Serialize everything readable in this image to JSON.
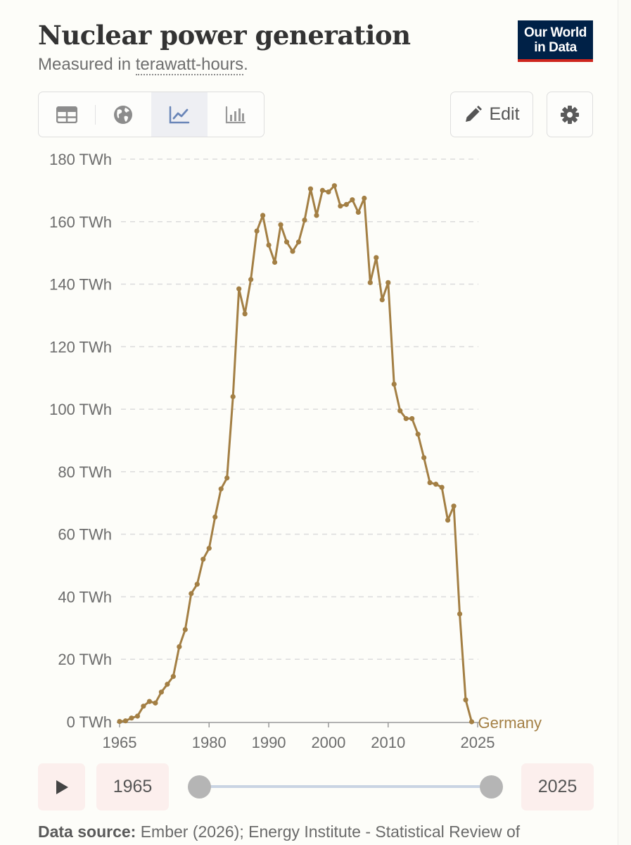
{
  "header": {
    "title": "Nuclear power generation",
    "subtitle_prefix": "Measured in ",
    "subtitle_unit": "terawatt-hours",
    "subtitle_suffix": ".",
    "logo_line1": "Our World",
    "logo_line2": "in Data"
  },
  "toolbar": {
    "tabs": [
      {
        "name": "table",
        "icon": "table-icon",
        "active": false
      },
      {
        "name": "map",
        "icon": "globe-icon",
        "active": false
      },
      {
        "name": "line-chart",
        "icon": "line-chart-icon",
        "active": true
      },
      {
        "name": "bar-chart",
        "icon": "bar-chart-icon",
        "active": false
      }
    ],
    "edit_label": "Edit",
    "settings_icon": "gear-icon"
  },
  "colors": {
    "series": "#a37f44",
    "grid": "#dcdcdc",
    "logo_bg": "#002147",
    "logo_accent": "#ce261e"
  },
  "chart_data": {
    "type": "line",
    "title": "Nuclear power generation",
    "ylabel": "",
    "xlabel": "",
    "ylim": [
      0,
      180
    ],
    "xlim": [
      1965,
      2025
    ],
    "yticks": [
      {
        "value": 0,
        "label": "0 TWh"
      },
      {
        "value": 20,
        "label": "20 TWh"
      },
      {
        "value": 40,
        "label": "40 TWh"
      },
      {
        "value": 60,
        "label": "60 TWh"
      },
      {
        "value": 80,
        "label": "80 TWh"
      },
      {
        "value": 100,
        "label": "100 TWh"
      },
      {
        "value": 120,
        "label": "120 TWh"
      },
      {
        "value": 140,
        "label": "140 TWh"
      },
      {
        "value": 160,
        "label": "160 TWh"
      },
      {
        "value": 180,
        "label": "180 TWh"
      }
    ],
    "xticks": [
      {
        "value": 1965,
        "label": "1965"
      },
      {
        "value": 1980,
        "label": "1980"
      },
      {
        "value": 1990,
        "label": "1990"
      },
      {
        "value": 2000,
        "label": "2000"
      },
      {
        "value": 2010,
        "label": "2010"
      },
      {
        "value": 2025,
        "label": "2025"
      }
    ],
    "grid": true,
    "series": [
      {
        "name": "Germany",
        "x": [
          1965,
          1966,
          1967,
          1968,
          1969,
          1970,
          1971,
          1972,
          1973,
          1974,
          1975,
          1976,
          1977,
          1978,
          1979,
          1980,
          1981,
          1982,
          1983,
          1984,
          1985,
          1986,
          1987,
          1988,
          1989,
          1990,
          1991,
          1992,
          1993,
          1994,
          1995,
          1996,
          1997,
          1998,
          1999,
          2000,
          2001,
          2002,
          2003,
          2004,
          2005,
          2006,
          2007,
          2008,
          2009,
          2010,
          2011,
          2012,
          2013,
          2014,
          2015,
          2016,
          2017,
          2018,
          2019,
          2020,
          2021,
          2022,
          2023,
          2024
        ],
        "values": [
          0.1,
          0.3,
          1.2,
          1.8,
          5.0,
          6.5,
          6.0,
          9.5,
          12.0,
          14.5,
          24.0,
          29.5,
          41.0,
          44.0,
          52.0,
          55.5,
          65.5,
          74.5,
          78.0,
          104.0,
          138.5,
          130.5,
          141.5,
          157.0,
          162.0,
          152.5,
          147.0,
          159.0,
          153.5,
          150.5,
          153.5,
          160.5,
          170.5,
          162.0,
          170.0,
          169.5,
          171.5,
          165.0,
          165.5,
          167.0,
          163.0,
          167.5,
          140.5,
          148.5,
          135.0,
          140.5,
          108.0,
          99.5,
          97.0,
          97.0,
          92.0,
          84.5,
          76.5,
          76.0,
          75.0,
          64.5,
          69.0,
          34.5,
          7.0,
          0.0
        ],
        "end_label": "Germany"
      }
    ]
  },
  "timeline": {
    "play_icon": "play-icon",
    "start_year": "1965",
    "end_year": "2025"
  },
  "footer": {
    "source_label": "Data source:",
    "source_text": " Ember (2026); Energy Institute - Statistical Review of"
  }
}
